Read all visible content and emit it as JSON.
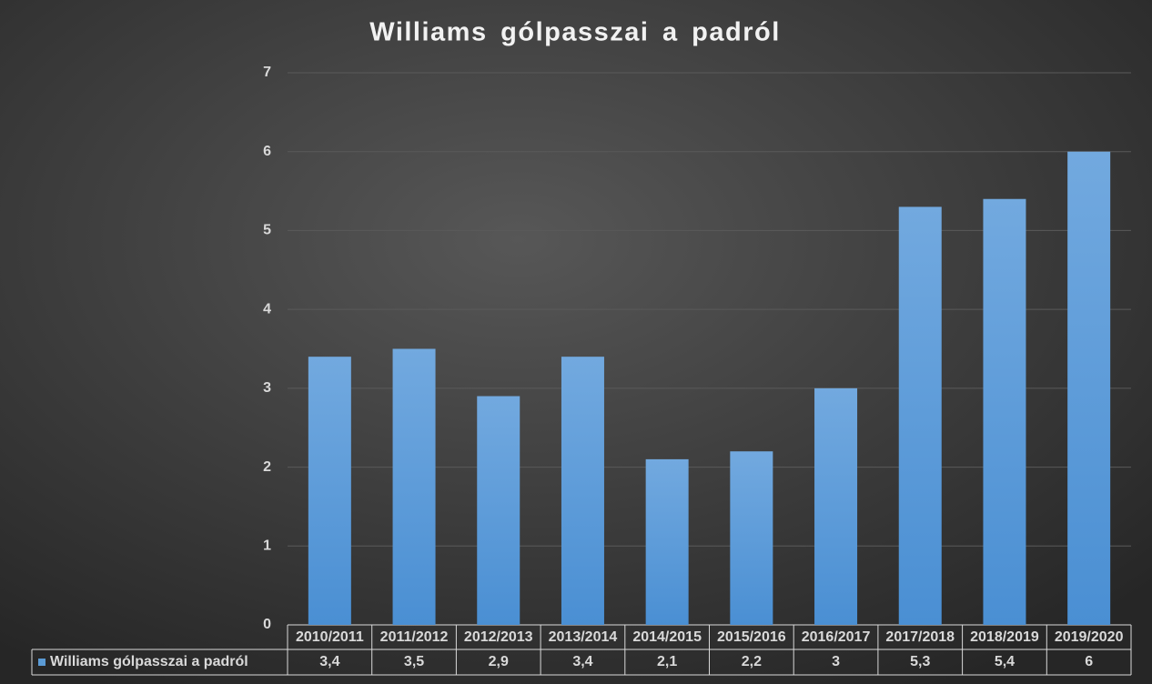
{
  "chart_data": {
    "type": "bar",
    "title": "Williams gólpasszai a padról",
    "categories": [
      "2010/2011",
      "2011/2012",
      "2012/2013",
      "2013/2014",
      "2014/2015",
      "2015/2016",
      "2016/2017",
      "2017/2018",
      "2018/2019",
      "2019/2020"
    ],
    "series": [
      {
        "name": "Williams gólpasszai a padról",
        "color": "#5b9bd5",
        "values": [
          3.4,
          3.5,
          2.9,
          3.4,
          2.1,
          2.2,
          3,
          5.3,
          5.4,
          6
        ],
        "value_labels": [
          "3,4",
          "3,5",
          "2,9",
          "3,4",
          "2,1",
          "2,2",
          "3",
          "5,3",
          "5,4",
          "6"
        ]
      }
    ],
    "ylim": [
      0,
      7
    ],
    "yticks": [
      0,
      1,
      2,
      3,
      4,
      5,
      6,
      7
    ],
    "grid": true
  }
}
